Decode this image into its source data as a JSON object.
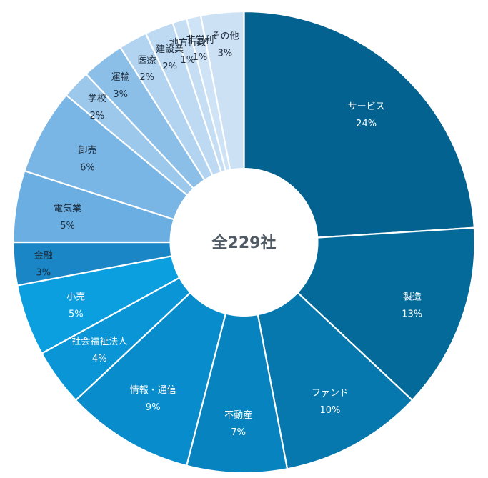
{
  "chart_data": {
    "type": "pie",
    "variant": "donut",
    "center_text": "全229社",
    "slices": [
      {
        "name": "サービス",
        "value": 24,
        "label": "24%",
        "color": "#03628f",
        "label_color": "#ffffff"
      },
      {
        "name": "製造",
        "value": 13,
        "label": "13%",
        "color": "#036a99",
        "label_color": "#ffffff"
      },
      {
        "name": "ファンド",
        "value": 10,
        "label": "10%",
        "color": "#0778ae",
        "label_color": "#ffffff"
      },
      {
        "name": "不動産",
        "value": 7,
        "label": "7%",
        "color": "#0784bf",
        "label_color": "#ffffff"
      },
      {
        "name": "情報・通信",
        "value": 9,
        "label": "9%",
        "color": "#088ccb",
        "label_color": "#ffffff"
      },
      {
        "name": "社会福祉法人",
        "value": 4,
        "label": "4%",
        "color": "#0a95d6",
        "label_color": "#ffffff"
      },
      {
        "name": "小売",
        "value": 5,
        "label": "5%",
        "color": "#0b9fe0",
        "label_color": "#ffffff"
      },
      {
        "name": "金融",
        "value": 3,
        "label": "3%",
        "color": "#1a86c6",
        "label_color": "#1f2d3d"
      },
      {
        "name": "電気業",
        "value": 5,
        "label": "5%",
        "color": "#6aaee2",
        "label_color": "#1f2d3d"
      },
      {
        "name": "卸売",
        "value": 6,
        "label": "6%",
        "color": "#7ab6e5",
        "label_color": "#1f2d3d"
      },
      {
        "name": "学校",
        "value": 2,
        "label": "2%",
        "color": "#9cc8ec",
        "label_color": "#1f2d3d"
      },
      {
        "name": "運輸",
        "value": 3,
        "label": "3%",
        "color": "#8cbfe8",
        "label_color": "#1f2d3d"
      },
      {
        "name": "医療",
        "value": 2,
        "label": "2%",
        "color": "#b3d4f1",
        "label_color": "#1f2d3d"
      },
      {
        "name": "建設業",
        "value": 2,
        "label": "2%",
        "color": "#bed9f2",
        "label_color": "#1f2d3d"
      },
      {
        "name": "地方行政",
        "value": 1,
        "label": "1%",
        "color": "#c6def4",
        "label_color": "#1f2d3d"
      },
      {
        "name": "非営利",
        "value": 1,
        "label": "1%",
        "color": "#cfe3f6",
        "label_color": "#1f2d3d"
      },
      {
        "name": "その他",
        "value": 3,
        "label": "3%",
        "color": "#cde1f4",
        "label_color": "#1f2d3d"
      }
    ]
  }
}
